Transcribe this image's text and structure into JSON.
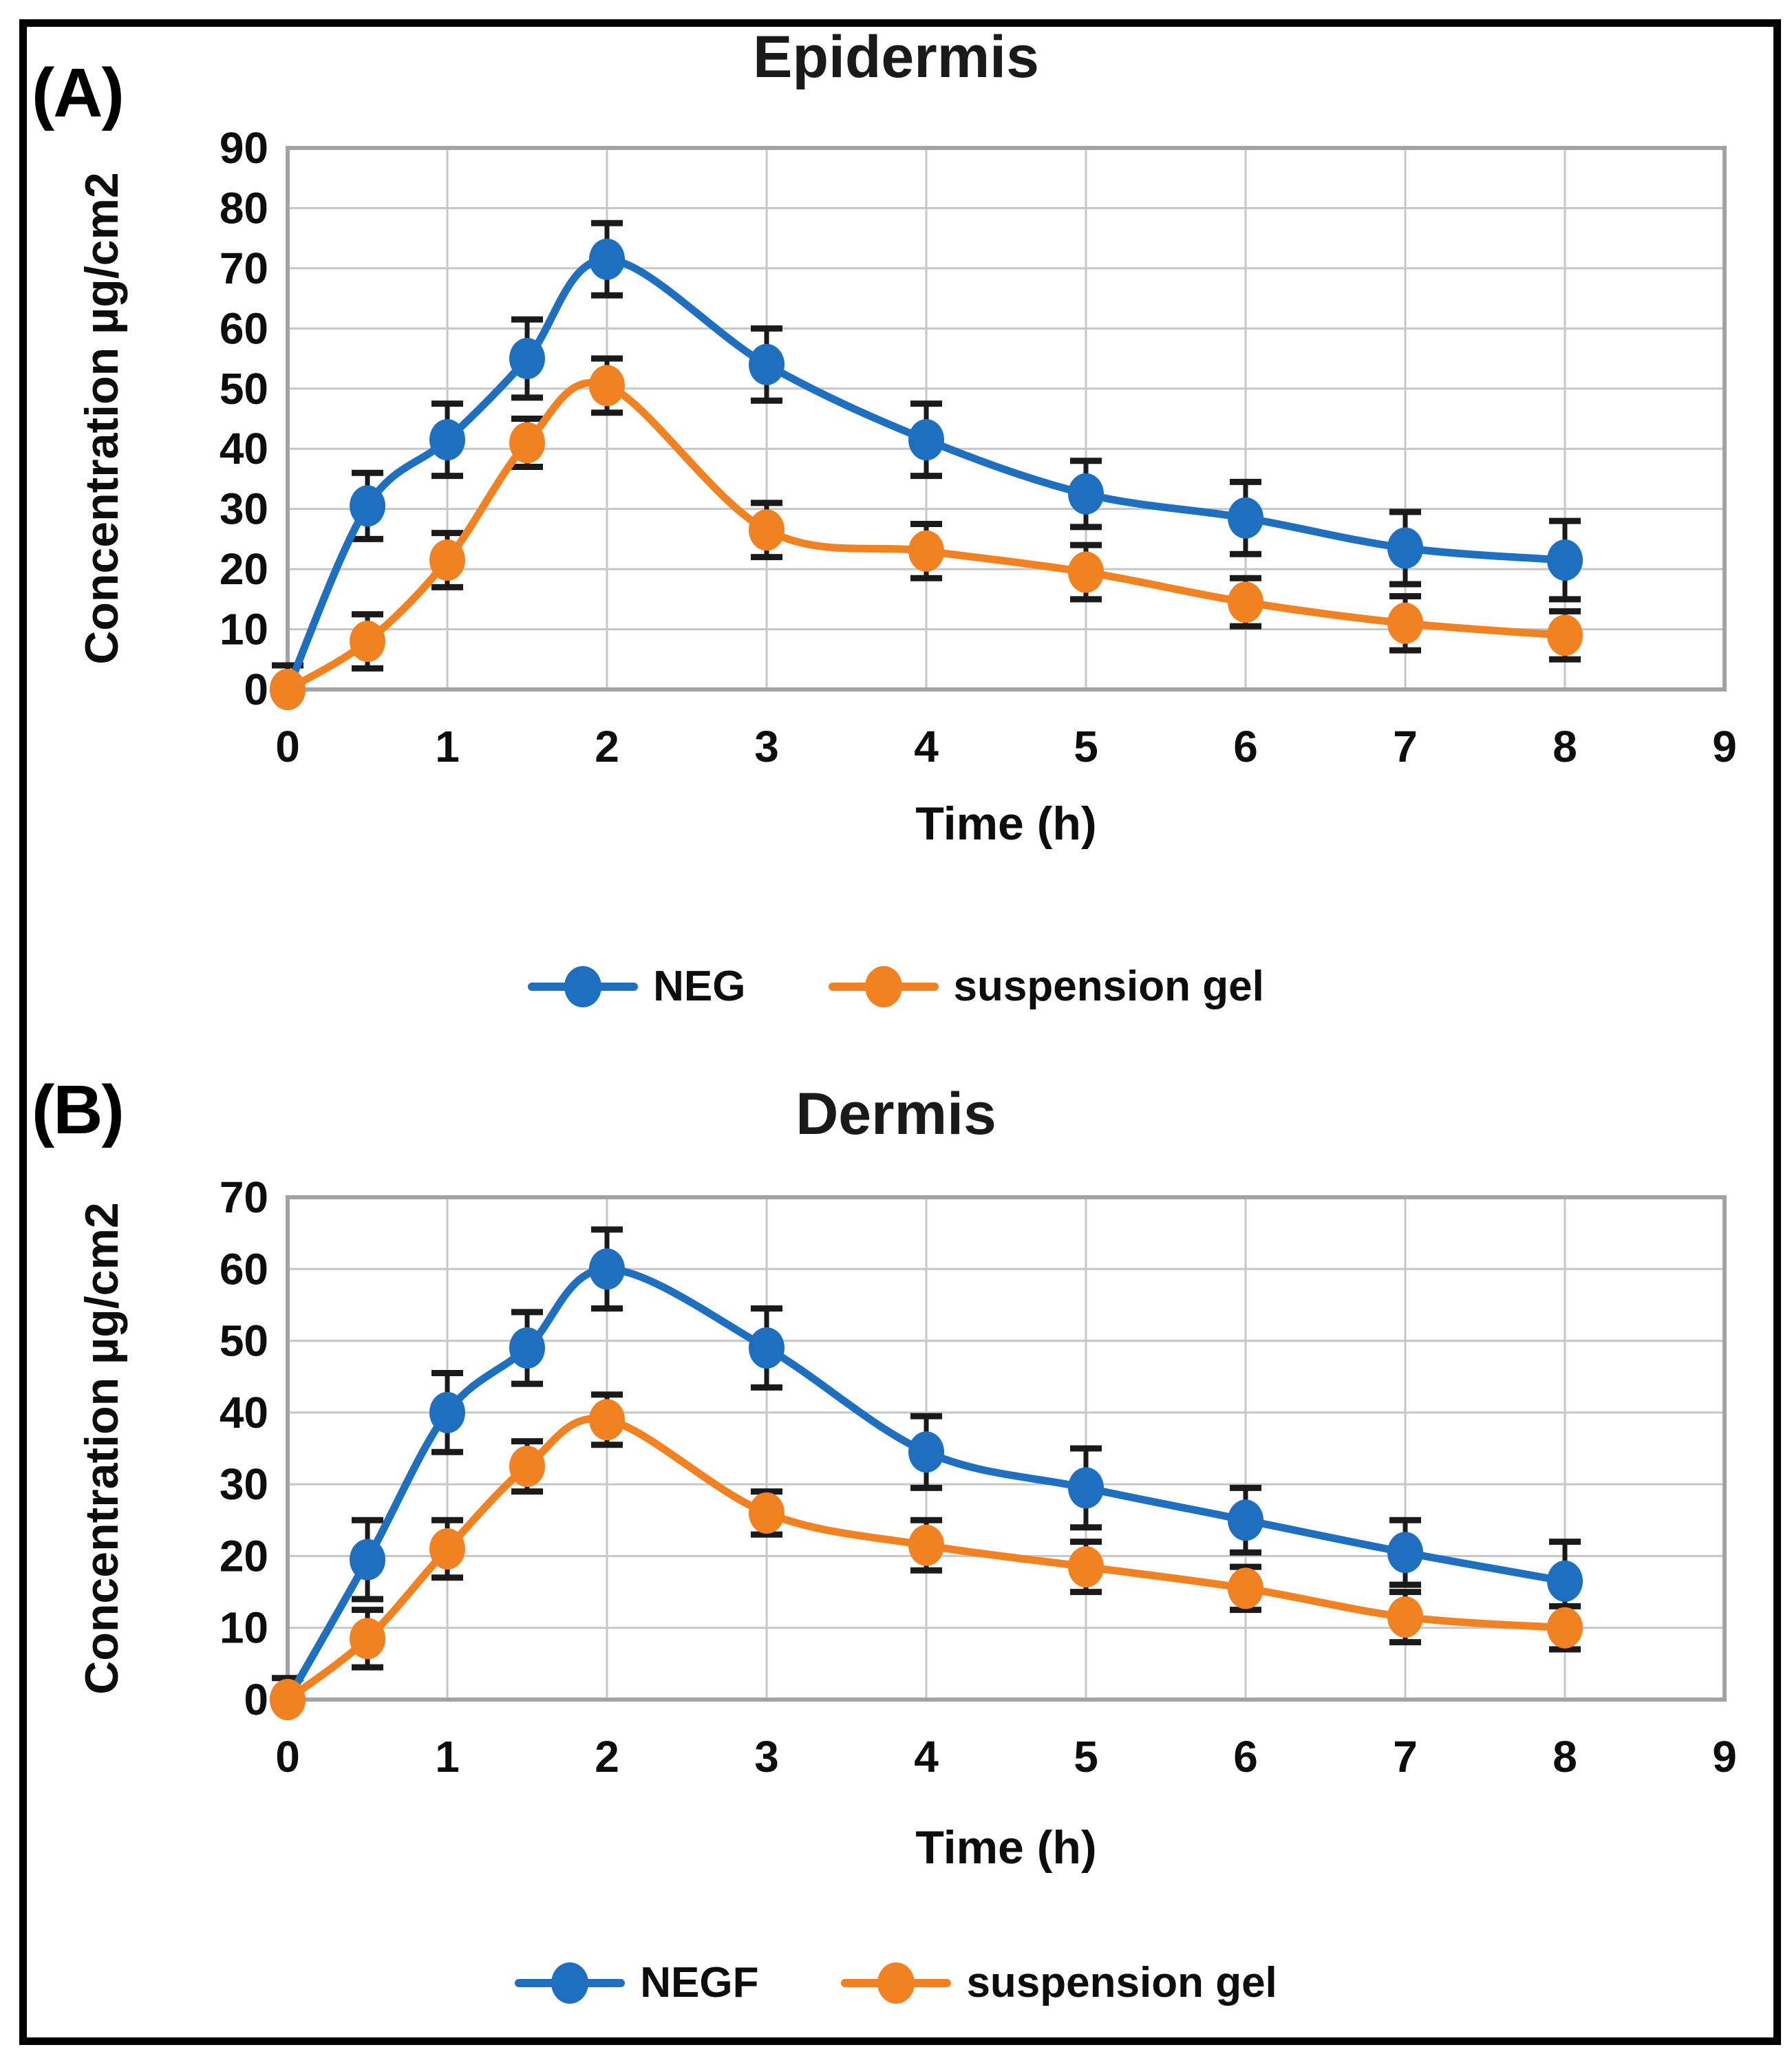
{
  "figure": {
    "colors": {
      "neg_blue": "#1e6fc0",
      "gel_orange": "#f28122",
      "grid": "#c7c7c7",
      "plot_border": "#a3a3a3",
      "error_bar": "#1a1a1a",
      "frame": "#000000"
    },
    "panels": [
      {
        "label": "(A)",
        "title": "Epidermis",
        "y_axis_title": "Concentration  µg/cm2",
        "x_axis_title": "Time (h)",
        "legend": [
          {
            "label": "NEG",
            "color_key": "neg_blue"
          },
          {
            "label": "suspension gel",
            "color_key": "gel_orange"
          }
        ]
      },
      {
        "label": "(B)",
        "title": "Dermis",
        "y_axis_title": "Concentration  µg/cm2",
        "x_axis_title": "Time (h)",
        "legend": [
          {
            "label": "NEGF",
            "color_key": "neg_blue"
          },
          {
            "label": "suspension gel",
            "color_key": "gel_orange"
          }
        ]
      }
    ]
  },
  "chart_data": [
    {
      "panel": "A",
      "type": "line",
      "title": "Epidermis",
      "xlabel": "Time (h)",
      "ylabel": "Concentration µg/cm2",
      "xlim": [
        0,
        9
      ],
      "ylim": [
        0,
        90
      ],
      "grid": true,
      "legend_position": "bottom",
      "x": [
        0,
        0.5,
        1,
        1.5,
        2,
        3,
        4,
        5,
        6,
        7,
        8
      ],
      "x_ticks": [
        "0",
        "1",
        "2",
        "3",
        "4",
        "5",
        "6",
        "7",
        "8",
        "9"
      ],
      "y_ticks": [
        0,
        10,
        20,
        30,
        40,
        50,
        60,
        70,
        80,
        90
      ],
      "series": [
        {
          "name": "NEG",
          "color_key": "neg_blue",
          "values": [
            0,
            30.5,
            41.5,
            55,
            71.5,
            54,
            41.5,
            32.5,
            28.5,
            23.5,
            21.5
          ],
          "errors": [
            4,
            5.5,
            6,
            6.5,
            6,
            6,
            6,
            5.5,
            6,
            6,
            6.5
          ]
        },
        {
          "name": "suspension gel",
          "color_key": "gel_orange",
          "values": [
            0,
            8,
            21.5,
            41,
            50.5,
            26.5,
            23,
            19.5,
            14.5,
            11,
            9
          ],
          "errors": [
            0,
            4.5,
            4.5,
            4,
            4.5,
            4.5,
            4.5,
            4.5,
            4,
            4.5,
            4
          ]
        }
      ]
    },
    {
      "panel": "B",
      "type": "line",
      "title": "Dermis",
      "xlabel": "Time (h)",
      "ylabel": "Concentration µg/cm2",
      "xlim": [
        0,
        9
      ],
      "ylim": [
        0,
        70
      ],
      "grid": true,
      "legend_position": "bottom",
      "x": [
        0,
        0.5,
        1,
        1.5,
        2,
        3,
        4,
        5,
        6,
        7,
        8
      ],
      "x_ticks": [
        "0",
        "1",
        "2",
        "3",
        "4",
        "5",
        "6",
        "7",
        "8",
        "9"
      ],
      "y_ticks": [
        0,
        10,
        20,
        30,
        40,
        50,
        60,
        70
      ],
      "series": [
        {
          "name": "NEGF",
          "color_key": "neg_blue",
          "values": [
            0,
            19.5,
            40,
            49,
            60,
            49,
            34.5,
            29.5,
            25,
            20.5,
            16.5
          ],
          "errors": [
            3,
            5.5,
            5.5,
            5,
            5.5,
            5.5,
            5,
            5.5,
            4.5,
            4.5,
            5.5
          ]
        },
        {
          "name": "suspension gel",
          "color_key": "gel_orange",
          "values": [
            0,
            8.5,
            21,
            32.5,
            39,
            26,
            21.5,
            18.5,
            15.5,
            11.5,
            10
          ],
          "errors": [
            0,
            4,
            4,
            3.5,
            3.5,
            3,
            3.5,
            3.5,
            3,
            3.5,
            3
          ]
        }
      ]
    }
  ]
}
